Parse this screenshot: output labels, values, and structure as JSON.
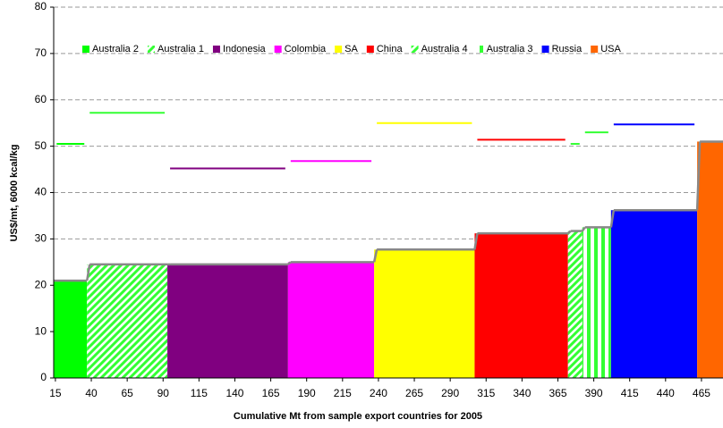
{
  "chart_data": {
    "type": "cost-curve",
    "y_label": "US$/mt, 6000 kcal/kg",
    "x_label": "Cumulative Mt from sample export countries for 2005",
    "xlim": [
      13.8,
      480
    ],
    "ylim": [
      0,
      80
    ],
    "xticks": [
      15,
      40,
      65,
      90,
      115,
      140,
      165,
      190,
      215,
      240,
      265,
      290,
      315,
      340,
      365,
      390,
      415,
      440,
      465
    ],
    "yticks": [
      0,
      10,
      20,
      30,
      40,
      50,
      60,
      70,
      80
    ],
    "grid": true,
    "series": [
      {
        "name": "Australia 2",
        "color": "#00ff00",
        "pattern": "solid",
        "x0": 14,
        "x1": 37,
        "value": 21,
        "price": 50.5
      },
      {
        "name": "Australia 1",
        "color": "#33ff33",
        "pattern": "diagonal",
        "x0": 37,
        "x1": 93,
        "value": 24.5,
        "price": 57.2
      },
      {
        "name": "Indonesia",
        "color": "#800080",
        "pattern": "solid",
        "x0": 93,
        "x1": 177,
        "value": 24.5,
        "price": 45.2
      },
      {
        "name": "Colombia",
        "color": "#ff00ff",
        "pattern": "solid",
        "x0": 177,
        "x1": 237,
        "value": 25,
        "price": 46.8
      },
      {
        "name": "SA",
        "color": "#ffff00",
        "pattern": "solid",
        "x0": 237,
        "x1": 307,
        "value": 27.7,
        "price": 55
      },
      {
        "name": "China",
        "color": "#ff0000",
        "pattern": "solid",
        "x0": 307,
        "x1": 372,
        "value": 31.2,
        "price": 51.4
      },
      {
        "name": "Australia 4",
        "color": "#33ff33",
        "pattern": "diagonal",
        "x0": 372,
        "x1": 382,
        "value": 31.7,
        "price": 50.5
      },
      {
        "name": "Australia 3",
        "color": "#33ff33",
        "pattern": "vertical",
        "x0": 382,
        "x1": 402,
        "value": 32.5,
        "price": 53
      },
      {
        "name": "Russia",
        "color": "#0000ff",
        "pattern": "solid",
        "x0": 402,
        "x1": 462,
        "value": 36.2,
        "price": 54.7
      },
      {
        "name": "USA",
        "color": "#ff6600",
        "pattern": "solid",
        "x0": 462,
        "x1": 480,
        "value": 51
      }
    ]
  }
}
